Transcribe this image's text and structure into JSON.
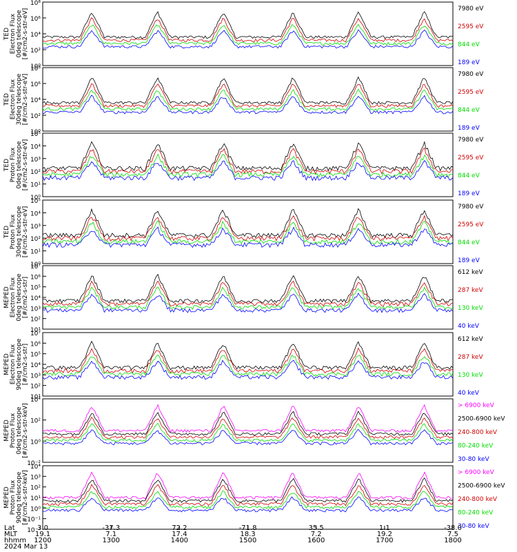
{
  "chart_data": [
    {
      "type": "line",
      "ylabel": "TED\nElectron Flux\n0deg telescope\n[#/cm2-s-str-eV]",
      "yscale": "log",
      "ylim": [
        1,
        100000000
      ],
      "yticks": [
        "10⁰",
        "10²",
        "10⁴",
        "10⁶",
        "10⁸"
      ],
      "series": [
        {
          "name": "7980 eV",
          "color": "#000000"
        },
        {
          "name": "2595 eV",
          "color": "#d00000"
        },
        {
          "name": "844 eV",
          "color": "#00dd00"
        },
        {
          "name": "189 eV",
          "color": "#0000ff"
        }
      ]
    },
    {
      "type": "line",
      "ylabel": "TED\nElectron Flux\n30deg telescope\n[#/cm2-s-str-eV]",
      "yscale": "log",
      "ylim": [
        1,
        100000000
      ],
      "yticks": [
        "10⁰",
        "10²",
        "10⁴",
        "10⁶",
        "10⁸"
      ],
      "series": [
        {
          "name": "7980 eV",
          "color": "#000000"
        },
        {
          "name": "2595 eV",
          "color": "#d00000"
        },
        {
          "name": "844 eV",
          "color": "#00dd00"
        },
        {
          "name": "189 eV",
          "color": "#0000ff"
        }
      ]
    },
    {
      "type": "line",
      "ylabel": "TED\nProton Flux\n0deg telescope\n[#/cm2-s-str-eV]",
      "yscale": "log",
      "ylim": [
        1,
        100000
      ],
      "yticks": [
        "10⁰",
        "10¹",
        "10²",
        "10³",
        "10⁴",
        "10⁵"
      ],
      "series": [
        {
          "name": "7980 eV",
          "color": "#000000"
        },
        {
          "name": "2595 eV",
          "color": "#d00000"
        },
        {
          "name": "844 eV",
          "color": "#00dd00"
        },
        {
          "name": "189 eV",
          "color": "#0000ff"
        }
      ]
    },
    {
      "type": "line",
      "ylabel": "TED\nProton Flux\n30deg telescope\n[#/cm2-s-str-eV]",
      "yscale": "log",
      "ylim": [
        1,
        100000
      ],
      "yticks": [
        "10⁰",
        "10¹",
        "10²",
        "10³",
        "10⁴",
        "10⁵"
      ],
      "series": [
        {
          "name": "7980 eV",
          "color": "#000000"
        },
        {
          "name": "2595 eV",
          "color": "#d00000"
        },
        {
          "name": "844 eV",
          "color": "#00dd00"
        },
        {
          "name": "189 eV",
          "color": "#0000ff"
        }
      ]
    },
    {
      "type": "line",
      "ylabel": "MEPED\nElectron Flux\n0deg telescope\n[#/cm2-s-str]",
      "yscale": "log",
      "ylim": [
        10,
        10000000
      ],
      "yticks": [
        "10¹",
        "10²",
        "10³",
        "10⁴",
        "10⁵",
        "10⁶",
        "10⁷"
      ],
      "series": [
        {
          "name": "612 keV",
          "color": "#000000"
        },
        {
          "name": "287 keV",
          "color": "#d00000"
        },
        {
          "name": "130 keV",
          "color": "#00dd00"
        },
        {
          "name": "40 keV",
          "color": "#0000ff"
        }
      ]
    },
    {
      "type": "line",
      "ylabel": "MEPED\nElectron Flux\n90deg telescope\n[#/cm2-s-str]",
      "yscale": "log",
      "ylim": [
        10,
        10000000
      ],
      "yticks": [
        "10¹",
        "10²",
        "10³",
        "10⁴",
        "10⁵",
        "10⁶",
        "10⁷"
      ],
      "series": [
        {
          "name": "612 keV",
          "color": "#000000"
        },
        {
          "name": "287 keV",
          "color": "#d00000"
        },
        {
          "name": "130 keV",
          "color": "#00dd00"
        },
        {
          "name": "40 keV",
          "color": "#0000ff"
        }
      ]
    },
    {
      "type": "line",
      "ylabel": "MEPED\nProton Flux\n0deg telescope\n[#/cm2-s-str-keV]",
      "yscale": "log",
      "ylim": [
        0.001,
        100000
      ],
      "yticks": [
        "10⁻²",
        "10⁰",
        "10²",
        "10⁴"
      ],
      "series": [
        {
          "name": "> 6900 keV",
          "color": "#ff00ff"
        },
        {
          "name": "2500-6900 keV",
          "color": "#000000"
        },
        {
          "name": "240-800 keV",
          "color": "#d00000"
        },
        {
          "name": "80-240 keV",
          "color": "#00dd00"
        },
        {
          "name": "30-80 keV",
          "color": "#0000ff"
        }
      ]
    },
    {
      "type": "line",
      "ylabel": "MEPED\nProton Flux\n90deg telescope\n[#/cm2-s-str-keV]",
      "yscale": "log",
      "ylim": [
        0.001,
        100000
      ],
      "yticks": [
        "10⁻²",
        "10⁻¹",
        "10⁰",
        "10¹",
        "10²",
        "10³",
        "10⁴"
      ],
      "series": [
        {
          "name": "> 6900 keV",
          "color": "#ff00ff"
        },
        {
          "name": "2500-6900 keV",
          "color": "#000000"
        },
        {
          "name": "240-800 keV",
          "color": "#d00000"
        },
        {
          "name": "80-240 keV",
          "color": "#00dd00"
        },
        {
          "name": "30-80 keV",
          "color": "#0000ff"
        }
      ]
    }
  ],
  "x_axis": {
    "row_labels": [
      "Lat",
      "MLT",
      "hhmm",
      "2024 Mar 13"
    ],
    "hhmm": [
      "1200",
      "1300",
      "1400",
      "1500",
      "1600",
      "1700",
      "1800"
    ],
    "lat": [
      "3.0",
      "-37.3",
      "72.2",
      "-71.8",
      "35.5",
      "1.1",
      "-38.0"
    ],
    "mlt": [
      "19.1",
      "7.1",
      "17.4",
      "18.3",
      "7.2",
      "19.2",
      "7.5"
    ]
  }
}
